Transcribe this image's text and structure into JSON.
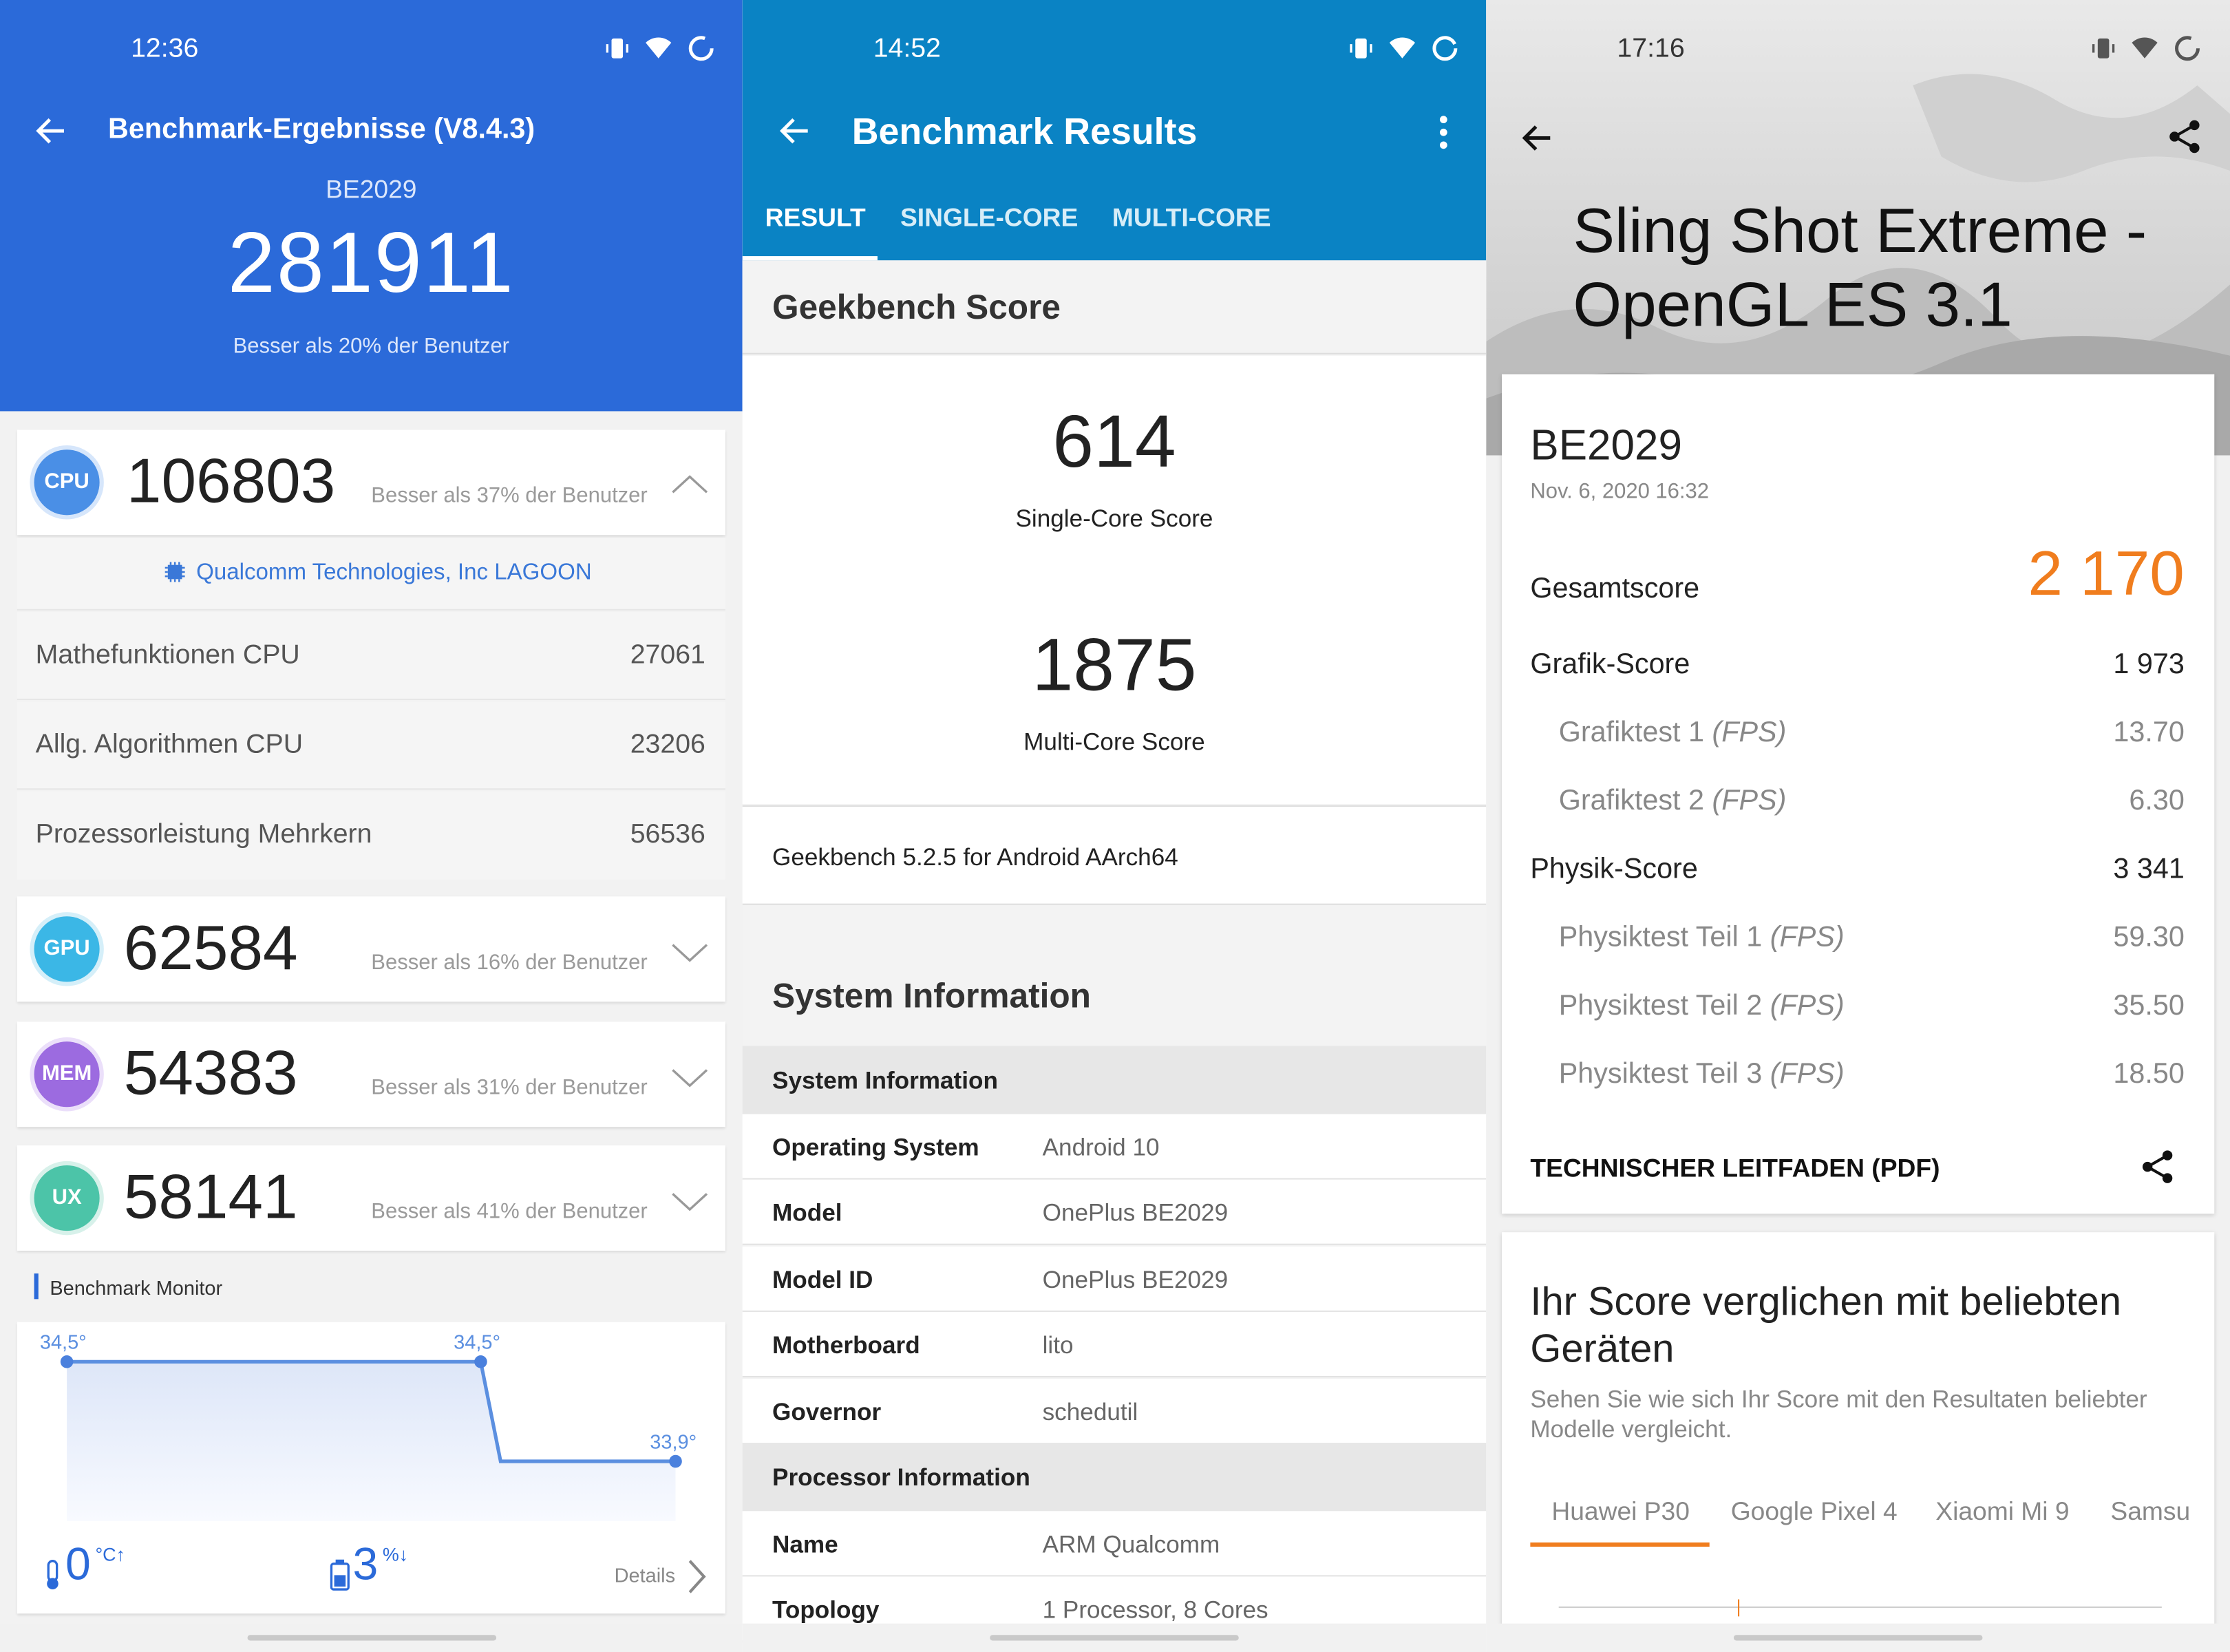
{
  "panel1": {
    "status": {
      "time": "12:36"
    },
    "header": {
      "title": "Benchmark-Ergebnisse (V8.4.3)",
      "device": "BE2029",
      "total_score": "281911",
      "better_than": "Besser als 20% der Benutzer"
    },
    "cpu": {
      "badge": "CPU",
      "score": "106803",
      "better_than": "Besser als 37% der Benutzer",
      "chip_label": "Qualcomm Technologies, Inc LAGOON",
      "rows": [
        {
          "label": "Mathefunktionen CPU",
          "value": "27061"
        },
        {
          "label": "Allg. Algorithmen CPU",
          "value": "23206"
        },
        {
          "label": "Prozessorleistung Mehrkern",
          "value": "56536"
        }
      ]
    },
    "gpu": {
      "badge": "GPU",
      "score": "62584",
      "better_than": "Besser als 16% der Benutzer"
    },
    "mem": {
      "badge": "MEM",
      "score": "54383",
      "better_than": "Besser als 31% der Benutzer"
    },
    "ux": {
      "badge": "UX",
      "score": "58141",
      "better_than": "Besser als 41% der Benutzer"
    },
    "monitor": {
      "title": "Benchmark Monitor",
      "labels": [
        "34,5°",
        "34,5°",
        "33,9°"
      ],
      "temp_value": "0",
      "temp_unit": "°C↑",
      "battery_value": "3",
      "battery_unit": "%↓",
      "details": "Details"
    },
    "colors": {
      "header": "#2b6ad9",
      "cpu": "#4a8fe6",
      "gpu": "#3bb7e6",
      "mem": "#9c6be0",
      "ux": "#4cc4a8"
    }
  },
  "panel2": {
    "status": {
      "time": "14:52"
    },
    "title": "Benchmark Results",
    "tabs": [
      "RESULT",
      "SINGLE-CORE",
      "MULTI-CORE"
    ],
    "section_title": "Geekbench Score",
    "single_score": "614",
    "single_label": "Single-Core Score",
    "multi_score": "1875",
    "multi_label": "Multi-Core Score",
    "version": "Geekbench 5.2.5 for Android AArch64",
    "sysinfo_title": "System Information",
    "sysinfo_header": "System Information",
    "sysinfo_rows": [
      {
        "k": "Operating System",
        "v": "Android 10"
      },
      {
        "k": "Model",
        "v": "OnePlus BE2029"
      },
      {
        "k": "Model ID",
        "v": "OnePlus BE2029"
      },
      {
        "k": "Motherboard",
        "v": "lito"
      },
      {
        "k": "Governor",
        "v": "schedutil"
      }
    ],
    "processor_header": "Processor Information",
    "processor_rows": [
      {
        "k": "Name",
        "v": "ARM Qualcomm"
      },
      {
        "k": "Topology",
        "v": "1 Processor, 8 Cores"
      }
    ],
    "colors": {
      "bar": "#0a83c4"
    }
  },
  "panel3": {
    "status": {
      "time": "17:16"
    },
    "title_line1": "Sling Shot Extreme -",
    "title_line2": "OpenGL ES 3.1",
    "device": "BE2029",
    "date": "Nov. 6, 2020 16:32",
    "total_label": "Gesamtscore",
    "total_value": "2 170",
    "rows": [
      {
        "k": "Grafik-Score",
        "v": "1 973",
        "type": "main"
      },
      {
        "k": "Grafiktest 1 ",
        "unit": "(FPS)",
        "v": "13.70",
        "type": "sub"
      },
      {
        "k": "Grafiktest 2 ",
        "unit": "(FPS)",
        "v": "6.30",
        "type": "sub"
      },
      {
        "k": "Physik-Score",
        "v": "3 341",
        "type": "main"
      },
      {
        "k": "Physiktest Teil 1 ",
        "unit": "(FPS)",
        "v": "59.30",
        "type": "sub"
      },
      {
        "k": "Physiktest Teil 2 ",
        "unit": "(FPS)",
        "v": "35.50",
        "type": "sub"
      },
      {
        "k": "Physiktest Teil 3 ",
        "unit": "(FPS)",
        "v": "18.50",
        "type": "sub"
      }
    ],
    "guide_label": "TECHNISCHER LEITFADEN (PDF)",
    "compare_title": "Ihr Score verglichen mit beliebten Geräten",
    "compare_sub": "Sehen Sie wie sich Ihr Score mit den Resultaten beliebter Modelle vergleicht.",
    "compare_tabs": [
      "Huawei P30",
      "Google Pixel 4",
      "Xiaomi Mi 9",
      "Samsu"
    ],
    "colors": {
      "accent": "#f07d1e"
    }
  }
}
